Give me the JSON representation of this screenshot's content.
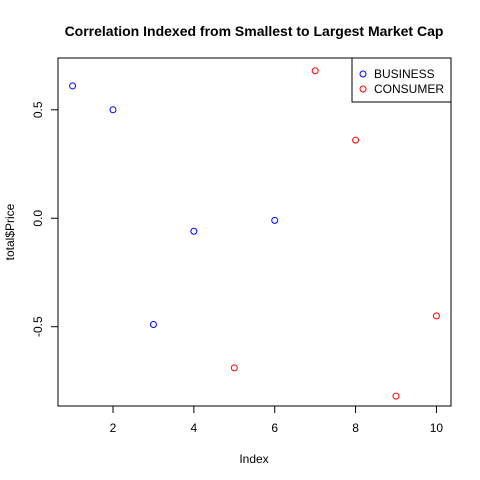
{
  "chart_data": {
    "type": "scatter",
    "title": "Correlation Indexed from Smallest to Largest Market Cap",
    "xlabel": "Index",
    "ylabel": "total$Price",
    "xlim": [
      0.64,
      10.36
    ],
    "ylim": [
      -0.8656,
      0.7388
    ],
    "x_ticks": [
      2,
      4,
      6,
      8,
      10
    ],
    "y_ticks": [
      -0.5,
      0.0,
      0.5
    ],
    "x_tick_labels": [
      "2",
      "4",
      "6",
      "8",
      "10"
    ],
    "y_tick_labels": [
      "-0.5",
      "0.0",
      "0.5"
    ],
    "grid": false,
    "legend_position": "top-right",
    "series": [
      {
        "name": "BUSINESS",
        "color": "#0000ff",
        "marker": "open-circle",
        "x": [
          1,
          2,
          3,
          4,
          6
        ],
        "y": [
          0.61,
          0.5,
          -0.49,
          -0.06,
          -0.01
        ]
      },
      {
        "name": "CONSUMER",
        "color": "#ff0000",
        "marker": "open-circle",
        "x": [
          5,
          7,
          8,
          9,
          10
        ],
        "y": [
          -0.69,
          0.68,
          0.36,
          -0.82,
          -0.45
        ]
      }
    ]
  }
}
